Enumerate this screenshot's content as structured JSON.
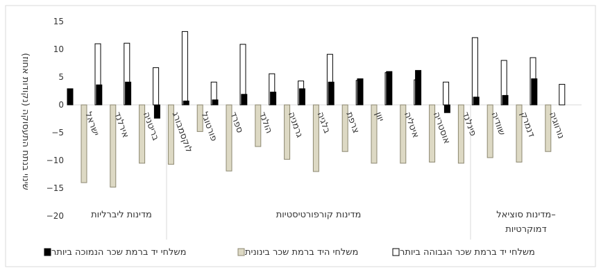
{
  "chart_data": {
    "type": "bar",
    "ylabel": "שינוי בנתח התעסוקה (נקודות אחוז)",
    "ylim": [
      -22,
      15
    ],
    "yticks": [
      15,
      10,
      5,
      0,
      -5,
      -10,
      -15,
      -20
    ],
    "ytick_labels": [
      "15",
      "10",
      "5",
      "0",
      "−5",
      "−10",
      "−15",
      "−20"
    ],
    "grid": false,
    "legend_position": "bottom",
    "categories": [
      "ישראל",
      "אירלנד",
      "בריטניה",
      "לוקסמבורג",
      "פורטוגל",
      "ספרד",
      "הולנד",
      "גרמניה",
      "בלגיה",
      "צרפת",
      "יוון",
      "איטליה",
      "אוסטריה",
      "פינלנד",
      "שוודיה",
      "דנמרק",
      "נורווגיה"
    ],
    "groups": [
      {
        "label": "מדינות ליברליות",
        "categories": [
          "ישראל",
          "אירלנד",
          "בריטניה"
        ]
      },
      {
        "label": "מדינות קורפורטיסטיות",
        "categories": [
          "לוקסמבורג",
          "פורטוגל",
          "ספרד",
          "הולנד",
          "גרמניה",
          "בלגיה",
          "צרפת",
          "יוון",
          "איטליה",
          "אוסטריה"
        ]
      },
      {
        "label": "מדינות סוציאל–דמוקרטיות",
        "categories": [
          "פינלנד",
          "שוודיה",
          "דנמרק",
          "נורווגיה"
        ]
      }
    ],
    "series": [
      {
        "name": "משלחי יד ברמת שכר הנמוכה ביותר",
        "color": "#000000",
        "values": [
          2.9,
          3.6,
          4.1,
          -2.4,
          0.7,
          0.9,
          1.9,
          2.3,
          2.9,
          4.1,
          4.7,
          6.0,
          6.2,
          -1.4,
          1.4,
          1.7,
          4.7
        ]
      },
      {
        "name": "משלחי היד ברמת שכר בינונית",
        "color": "#ddd9c4",
        "values": [
          -14.0,
          -14.8,
          -10.5,
          -10.7,
          -4.8,
          -11.9,
          -7.5,
          -9.8,
          -12.0,
          -8.4,
          -10.5,
          -10.5,
          -10.3,
          -10.5,
          -9.5,
          -10.3,
          -8.4
        ]
      },
      {
        "name": "משלחי יד ברמת שכר הגבוהה ביותר",
        "color": "#ffffff",
        "values": [
          11.0,
          11.1,
          6.7,
          13.2,
          4.1,
          10.9,
          5.6,
          4.3,
          9.1,
          4.4,
          5.8,
          4.5,
          4.1,
          12.1,
          8.0,
          8.5,
          3.7
        ]
      }
    ]
  }
}
